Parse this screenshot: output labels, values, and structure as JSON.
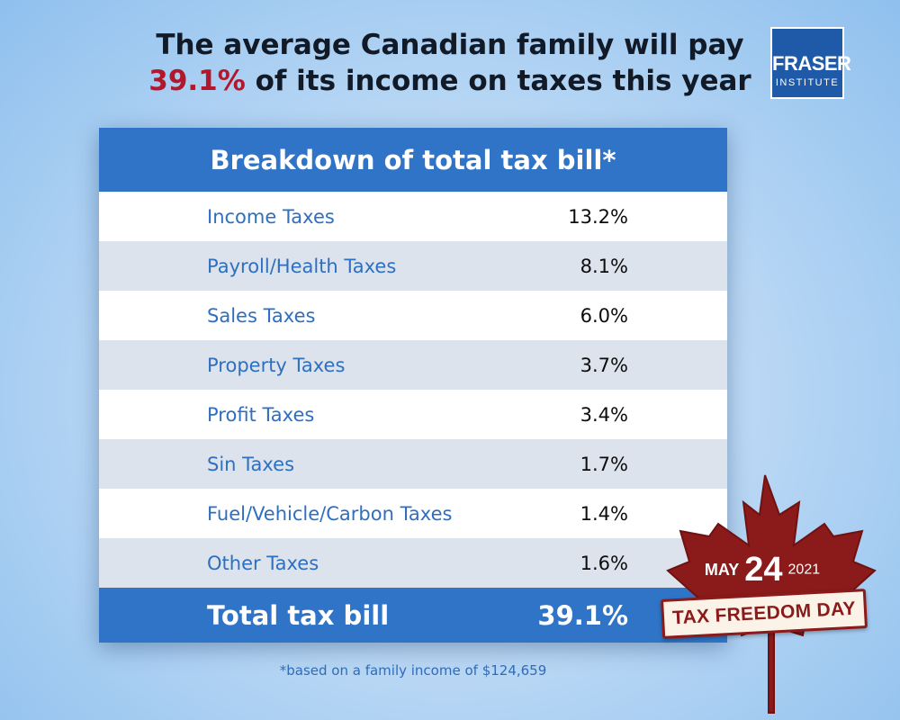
{
  "headline": {
    "line1": "The average Canadian family will pay",
    "highlight": "39.1%",
    "line2_rest": " of its income on taxes this year"
  },
  "logo": {
    "line1": "FRASER",
    "line2": "INSTITUTE"
  },
  "chart_data": {
    "type": "table",
    "title": "Breakdown of total tax bill*",
    "rows": [
      {
        "label": "Income Taxes",
        "value": "13.2%"
      },
      {
        "label": "Payroll/Health Taxes",
        "value": "8.1%"
      },
      {
        "label": "Sales Taxes",
        "value": "6.0%"
      },
      {
        "label": "Property Taxes",
        "value": "3.7%"
      },
      {
        "label": "Profit Taxes",
        "value": "3.4%"
      },
      {
        "label": "Sin Taxes",
        "value": "1.7%"
      },
      {
        "label": "Fuel/Vehicle/Carbon Taxes",
        "value": "1.4%"
      },
      {
        "label": "Other Taxes",
        "value": "1.6%"
      }
    ],
    "total": {
      "label": "Total tax bill",
      "value": "39.1%"
    },
    "footnote": "*based on a family income of $124,659"
  },
  "badge": {
    "month": "MAY",
    "day": "24",
    "year": "2021",
    "banner": "TAX FREEDOM DAY"
  },
  "colors": {
    "accent_blue": "#2f74c6",
    "highlight_red": "#b2182b",
    "leaf_red": "#8b1a1a"
  }
}
